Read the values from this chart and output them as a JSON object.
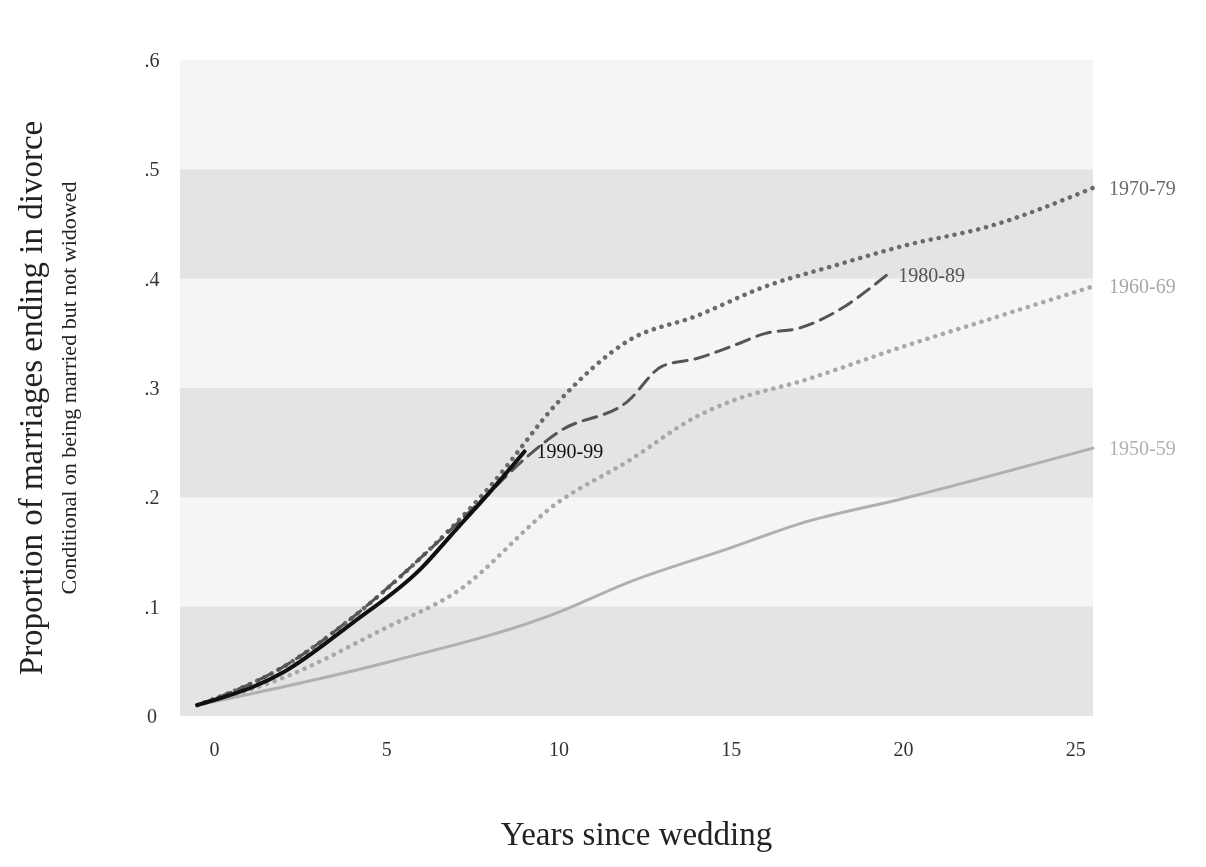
{
  "chart_data": {
    "type": "line",
    "ylabel": "Proportion of marriages ending in divorce",
    "subtitle": "Conditional on being married but not widowed",
    "xlabel": "Years since wedding",
    "xlim": [
      -1,
      25.5
    ],
    "xticks": [
      0,
      5,
      10,
      15,
      20,
      25
    ],
    "ylim": [
      0,
      0.6
    ],
    "yticks": [
      {
        "value": 0,
        "label": "0"
      },
      {
        "value": 0.1,
        "label": ".1"
      },
      {
        "value": 0.2,
        "label": ".2"
      },
      {
        "value": 0.3,
        "label": ".3"
      },
      {
        "value": 0.4,
        "label": ".4"
      },
      {
        "value": 0.5,
        "label": ".5"
      },
      {
        "value": 0.6,
        "label": ".6"
      }
    ],
    "bands": [
      {
        "axis": "y",
        "from": 0,
        "to": 0.1,
        "color": "#e4e4e4"
      },
      {
        "axis": "y",
        "from": 0.2,
        "to": 0.3,
        "color": "#e4e4e4"
      },
      {
        "axis": "y",
        "from": 0.4,
        "to": 0.5,
        "color": "#e4e4e4"
      }
    ],
    "grid": false,
    "marker": "none",
    "series": [
      {
        "name": "1950-59",
        "color": "#b0b0b0",
        "line_style": "solid",
        "x": [
          -0.5,
          5,
          10,
          12,
          15,
          17,
          20,
          25.5
        ],
        "values": [
          0.01,
          0.049,
          0.095,
          0.122,
          0.154,
          0.176,
          0.199,
          0.245
        ]
      },
      {
        "name": "1960-69",
        "color": "#a8a8a8",
        "line_style": "dotted",
        "x": [
          -0.5,
          2,
          5,
          7,
          10,
          12,
          14,
          15,
          17,
          20,
          22.5,
          25.5
        ],
        "values": [
          0.01,
          0.035,
          0.081,
          0.113,
          0.196,
          0.233,
          0.274,
          0.288,
          0.306,
          0.338,
          0.363,
          0.393
        ]
      },
      {
        "name": "1970-79",
        "color": "#6a6a6a",
        "line_style": "dotted",
        "x": [
          -0.5,
          2,
          4,
          6,
          8,
          10,
          12,
          14,
          16,
          18,
          20,
          22.5,
          25.5
        ],
        "values": [
          0.01,
          0.045,
          0.09,
          0.145,
          0.21,
          0.288,
          0.343,
          0.366,
          0.393,
          0.412,
          0.43,
          0.448,
          0.483
        ]
      },
      {
        "name": "1980-89",
        "color": "#555555",
        "line_style": "dashed",
        "x": [
          -0.5,
          2,
          4,
          6,
          8,
          9,
          10,
          12,
          13,
          14,
          15,
          16,
          17,
          18,
          19.5
        ],
        "values": [
          0.01,
          0.045,
          0.09,
          0.145,
          0.205,
          0.235,
          0.26,
          0.288,
          0.32,
          0.327,
          0.338,
          0.35,
          0.355,
          0.369,
          0.403
        ]
      },
      {
        "name": "1990-99",
        "color": "#111111",
        "line_style": "solid",
        "x": [
          -0.5,
          2,
          4,
          6,
          7,
          8,
          9
        ],
        "values": [
          0.01,
          0.04,
          0.085,
          0.135,
          0.17,
          0.205,
          0.242
        ]
      }
    ]
  }
}
